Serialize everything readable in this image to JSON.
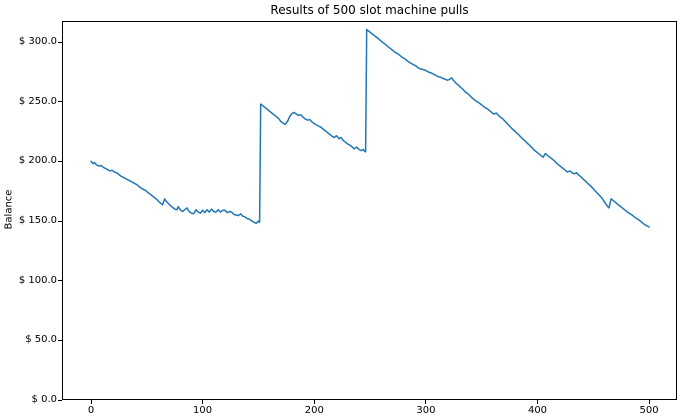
{
  "chart_data": {
    "type": "line",
    "title": "Results of 500 slot machine pulls",
    "xlabel": "",
    "ylabel": "Balance",
    "xlim": [
      -26,
      525
    ],
    "ylim": [
      0,
      317.6
    ],
    "grid": false,
    "legend": null,
    "line_color": "#1f77b4",
    "spine_color": "#000000",
    "xtick_values": [
      0,
      100,
      200,
      300,
      400,
      500
    ],
    "xtick_labels": [
      "0",
      "100",
      "200",
      "300",
      "400",
      "500"
    ],
    "ytick_values": [
      0,
      50,
      100,
      150,
      200,
      250,
      300
    ],
    "ytick_labels": [
      "$ 0.0",
      "$ 50.0",
      "$ 100.0",
      "$ 150.0",
      "$ 200.0",
      "$ 250.0",
      "$ 300.0"
    ],
    "series": [
      {
        "points": [
          [
            0,
            200
          ],
          [
            2,
            198
          ],
          [
            3,
            199
          ],
          [
            5,
            197
          ],
          [
            7,
            196
          ],
          [
            9,
            196.5
          ],
          [
            11,
            195
          ],
          [
            13,
            194
          ],
          [
            15,
            193
          ],
          [
            17,
            192
          ],
          [
            19,
            192.5
          ],
          [
            21,
            191
          ],
          [
            23,
            190.5
          ],
          [
            25,
            189
          ],
          [
            27,
            187.5
          ],
          [
            29,
            186.5
          ],
          [
            31,
            185.5
          ],
          [
            33,
            184.5
          ],
          [
            35,
            183.5
          ],
          [
            37,
            182.5
          ],
          [
            39,
            181.5
          ],
          [
            41,
            180.5
          ],
          [
            43,
            179
          ],
          [
            45,
            177.5
          ],
          [
            47,
            176.5
          ],
          [
            49,
            175.5
          ],
          [
            51,
            174
          ],
          [
            53,
            172.5
          ],
          [
            55,
            171
          ],
          [
            57,
            169.5
          ],
          [
            59,
            168
          ],
          [
            61,
            166
          ],
          [
            63,
            164.5
          ],
          [
            64,
            163.5
          ],
          [
            66,
            168.5
          ],
          [
            67,
            167
          ],
          [
            69,
            165
          ],
          [
            71,
            163
          ],
          [
            73,
            161.5
          ],
          [
            75,
            160
          ],
          [
            77,
            159.5
          ],
          [
            78,
            162
          ],
          [
            80,
            159.5
          ],
          [
            82,
            158
          ],
          [
            84,
            159.5
          ],
          [
            86,
            161
          ],
          [
            88,
            158
          ],
          [
            90,
            156.5
          ],
          [
            92,
            156
          ],
          [
            94,
            159.5
          ],
          [
            96,
            157.5
          ],
          [
            98,
            156.5
          ],
          [
            100,
            159
          ],
          [
            102,
            157
          ],
          [
            104,
            159.5
          ],
          [
            106,
            157.5
          ],
          [
            108,
            160
          ],
          [
            110,
            158
          ],
          [
            112,
            157.5
          ],
          [
            114,
            159.5
          ],
          [
            116,
            157.5
          ],
          [
            118,
            159
          ],
          [
            120,
            159
          ],
          [
            122,
            157
          ],
          [
            124,
            158
          ],
          [
            126,
            157.5
          ],
          [
            128,
            155.5
          ],
          [
            130,
            155
          ],
          [
            132,
            154.5
          ],
          [
            134,
            156
          ],
          [
            136,
            154
          ],
          [
            138,
            153.5
          ],
          [
            140,
            152
          ],
          [
            142,
            151.5
          ],
          [
            144,
            150
          ],
          [
            146,
            149
          ],
          [
            148,
            148
          ],
          [
            150,
            150
          ],
          [
            151,
            149
          ],
          [
            152,
            248
          ],
          [
            154,
            246.5
          ],
          [
            156,
            245
          ],
          [
            158,
            243.5
          ],
          [
            160,
            242
          ],
          [
            162,
            240.5
          ],
          [
            164,
            239
          ],
          [
            166,
            237.5
          ],
          [
            168,
            236
          ],
          [
            170,
            233.5
          ],
          [
            172,
            232
          ],
          [
            174,
            231
          ],
          [
            176,
            233.5
          ],
          [
            178,
            237.5
          ],
          [
            180,
            240
          ],
          [
            182,
            241
          ],
          [
            184,
            239.5
          ],
          [
            186,
            238.5
          ],
          [
            188,
            239
          ],
          [
            190,
            237
          ],
          [
            192,
            235.5
          ],
          [
            194,
            234.5
          ],
          [
            196,
            235
          ],
          [
            198,
            233
          ],
          [
            200,
            231.5
          ],
          [
            202,
            230.5
          ],
          [
            204,
            229.5
          ],
          [
            206,
            228.5
          ],
          [
            208,
            227
          ],
          [
            210,
            225.5
          ],
          [
            212,
            224
          ],
          [
            214,
            222.5
          ],
          [
            216,
            221
          ],
          [
            218,
            220
          ],
          [
            220,
            221.5
          ],
          [
            222,
            219
          ],
          [
            224,
            220
          ],
          [
            226,
            217.5
          ],
          [
            228,
            216
          ],
          [
            230,
            214.5
          ],
          [
            232,
            213.5
          ],
          [
            234,
            212
          ],
          [
            236,
            210.5
          ],
          [
            238,
            212
          ],
          [
            240,
            210
          ],
          [
            242,
            209
          ],
          [
            244,
            210
          ],
          [
            245,
            208.5
          ],
          [
            246,
            208
          ],
          [
            247,
            310.5
          ],
          [
            249,
            309
          ],
          [
            251,
            307.5
          ],
          [
            253,
            306
          ],
          [
            255,
            304.5
          ],
          [
            257,
            303
          ],
          [
            259,
            301.5
          ],
          [
            261,
            300
          ],
          [
            263,
            298.5
          ],
          [
            265,
            297
          ],
          [
            267,
            295.5
          ],
          [
            269,
            294
          ],
          [
            271,
            292.5
          ],
          [
            273,
            291
          ],
          [
            275,
            290
          ],
          [
            277,
            288.5
          ],
          [
            279,
            287
          ],
          [
            281,
            286
          ],
          [
            283,
            284.5
          ],
          [
            285,
            283
          ],
          [
            287,
            282
          ],
          [
            289,
            281
          ],
          [
            291,
            280
          ],
          [
            293,
            278.5
          ],
          [
            295,
            277.5
          ],
          [
            297,
            277
          ],
          [
            299,
            276.5
          ],
          [
            301,
            275.5
          ],
          [
            303,
            274.5
          ],
          [
            305,
            274
          ],
          [
            307,
            273
          ],
          [
            309,
            272
          ],
          [
            311,
            271
          ],
          [
            313,
            270.5
          ],
          [
            315,
            269.5
          ],
          [
            317,
            269
          ],
          [
            319,
            268
          ],
          [
            321,
            268.5
          ],
          [
            323,
            270
          ],
          [
            325,
            267.5
          ],
          [
            327,
            265.5
          ],
          [
            329,
            264
          ],
          [
            331,
            262
          ],
          [
            333,
            260.5
          ],
          [
            335,
            258.5
          ],
          [
            337,
            257
          ],
          [
            339,
            255.5
          ],
          [
            341,
            253.5
          ],
          [
            343,
            252
          ],
          [
            345,
            250.5
          ],
          [
            347,
            249.5
          ],
          [
            349,
            248
          ],
          [
            351,
            246.5
          ],
          [
            353,
            245
          ],
          [
            355,
            244
          ],
          [
            357,
            242.5
          ],
          [
            359,
            241
          ],
          [
            361,
            239.5
          ],
          [
            363,
            240.5
          ],
          [
            365,
            238.5
          ],
          [
            367,
            237
          ],
          [
            369,
            235.5
          ],
          [
            371,
            233.5
          ],
          [
            373,
            231.5
          ],
          [
            375,
            229.5
          ],
          [
            377,
            227.5
          ],
          [
            379,
            226
          ],
          [
            381,
            224
          ],
          [
            383,
            222.5
          ],
          [
            385,
            220.5
          ],
          [
            387,
            218.5
          ],
          [
            389,
            217
          ],
          [
            391,
            215
          ],
          [
            393,
            213.5
          ],
          [
            395,
            211.5
          ],
          [
            397,
            209.5
          ],
          [
            399,
            208
          ],
          [
            401,
            206.5
          ],
          [
            403,
            205
          ],
          [
            405,
            203.5
          ],
          [
            407,
            206.5
          ],
          [
            409,
            205
          ],
          [
            411,
            203.5
          ],
          [
            413,
            202
          ],
          [
            415,
            200.5
          ],
          [
            417,
            198.5
          ],
          [
            419,
            197
          ],
          [
            421,
            195.5
          ],
          [
            423,
            194
          ],
          [
            425,
            192.5
          ],
          [
            427,
            191
          ],
          [
            429,
            192
          ],
          [
            431,
            190.5
          ],
          [
            433,
            189.5
          ],
          [
            435,
            190.5
          ],
          [
            437,
            188.5
          ],
          [
            439,
            187
          ],
          [
            441,
            185
          ],
          [
            443,
            183.5
          ],
          [
            445,
            181.5
          ],
          [
            447,
            180
          ],
          [
            449,
            178
          ],
          [
            451,
            176
          ],
          [
            453,
            174
          ],
          [
            455,
            172
          ],
          [
            457,
            170
          ],
          [
            459,
            167.5
          ],
          [
            461,
            164.5
          ],
          [
            463,
            162
          ],
          [
            464,
            161
          ],
          [
            466,
            168.5
          ],
          [
            468,
            167
          ],
          [
            470,
            165.5
          ],
          [
            472,
            164
          ],
          [
            474,
            162.5
          ],
          [
            476,
            161
          ],
          [
            478,
            159.5
          ],
          [
            480,
            158
          ],
          [
            482,
            156.5
          ],
          [
            484,
            155.5
          ],
          [
            486,
            154
          ],
          [
            488,
            152.5
          ],
          [
            490,
            151.5
          ],
          [
            492,
            150
          ],
          [
            494,
            148.5
          ],
          [
            496,
            147
          ],
          [
            498,
            146
          ],
          [
            500,
            145
          ]
        ]
      }
    ]
  }
}
